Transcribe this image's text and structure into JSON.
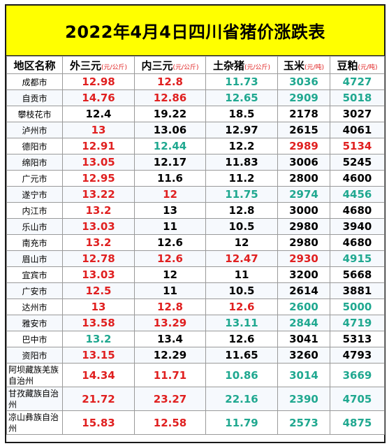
{
  "title": "2022年4月4日四川省猪价涨跌表",
  "colors": {
    "up": "#e02020",
    "down": "#20a890",
    "flat": "#000000",
    "title_bg": "#ffff00"
  },
  "headers": [
    {
      "name": "地区名称",
      "unit": ""
    },
    {
      "name": "外三元",
      "unit": "(元/公斤)"
    },
    {
      "name": "内三元",
      "unit": "(元/公斤)"
    },
    {
      "name": "土杂猪",
      "unit": "(元/公斤)"
    },
    {
      "name": "玉米",
      "unit": "(元/吨)"
    },
    {
      "name": "豆粕",
      "unit": "(元/吨)"
    }
  ],
  "rows": [
    {
      "region": "成都市",
      "cells": [
        {
          "v": "12.98",
          "t": "up"
        },
        {
          "v": "12.8",
          "t": "up"
        },
        {
          "v": "11.73",
          "t": "down"
        },
        {
          "v": "3036",
          "t": "down"
        },
        {
          "v": "4727",
          "t": "down"
        }
      ]
    },
    {
      "region": "自贡市",
      "cells": [
        {
          "v": "14.76",
          "t": "up"
        },
        {
          "v": "12.86",
          "t": "up"
        },
        {
          "v": "12.65",
          "t": "down"
        },
        {
          "v": "2909",
          "t": "down"
        },
        {
          "v": "5018",
          "t": "down"
        }
      ]
    },
    {
      "region": "攀枝花市",
      "cells": [
        {
          "v": "12.4",
          "t": "flat"
        },
        {
          "v": "19.22",
          "t": "flat"
        },
        {
          "v": "18.5",
          "t": "flat"
        },
        {
          "v": "2178",
          "t": "flat"
        },
        {
          "v": "3027",
          "t": "flat"
        }
      ]
    },
    {
      "region": "泸州市",
      "cells": [
        {
          "v": "13",
          "t": "up"
        },
        {
          "v": "13.06",
          "t": "flat"
        },
        {
          "v": "12.97",
          "t": "flat"
        },
        {
          "v": "2615",
          "t": "flat"
        },
        {
          "v": "4061",
          "t": "flat"
        }
      ]
    },
    {
      "region": "德阳市",
      "cells": [
        {
          "v": "12.91",
          "t": "up"
        },
        {
          "v": "12.44",
          "t": "down"
        },
        {
          "v": "12.2",
          "t": "flat"
        },
        {
          "v": "2989",
          "t": "up"
        },
        {
          "v": "5134",
          "t": "up"
        }
      ]
    },
    {
      "region": "绵阳市",
      "cells": [
        {
          "v": "13.05",
          "t": "up"
        },
        {
          "v": "12.17",
          "t": "flat"
        },
        {
          "v": "11.83",
          "t": "flat"
        },
        {
          "v": "3006",
          "t": "flat"
        },
        {
          "v": "5245",
          "t": "flat"
        }
      ]
    },
    {
      "region": "广元市",
      "cells": [
        {
          "v": "12.95",
          "t": "up"
        },
        {
          "v": "11.6",
          "t": "flat"
        },
        {
          "v": "11.2",
          "t": "flat"
        },
        {
          "v": "2800",
          "t": "flat"
        },
        {
          "v": "4600",
          "t": "flat"
        }
      ]
    },
    {
      "region": "遂宁市",
      "cells": [
        {
          "v": "13.22",
          "t": "up"
        },
        {
          "v": "12",
          "t": "up"
        },
        {
          "v": "11.75",
          "t": "down"
        },
        {
          "v": "2974",
          "t": "down"
        },
        {
          "v": "4456",
          "t": "down"
        }
      ]
    },
    {
      "region": "内江市",
      "cells": [
        {
          "v": "13.2",
          "t": "up"
        },
        {
          "v": "13",
          "t": "flat"
        },
        {
          "v": "12.8",
          "t": "flat"
        },
        {
          "v": "3000",
          "t": "flat"
        },
        {
          "v": "4680",
          "t": "flat"
        }
      ]
    },
    {
      "region": "乐山市",
      "cells": [
        {
          "v": "13.03",
          "t": "up"
        },
        {
          "v": "11",
          "t": "flat"
        },
        {
          "v": "10.5",
          "t": "flat"
        },
        {
          "v": "2980",
          "t": "flat"
        },
        {
          "v": "3940",
          "t": "flat"
        }
      ]
    },
    {
      "region": "南充市",
      "cells": [
        {
          "v": "13.2",
          "t": "up"
        },
        {
          "v": "12.6",
          "t": "flat"
        },
        {
          "v": "12",
          "t": "flat"
        },
        {
          "v": "2980",
          "t": "flat"
        },
        {
          "v": "4680",
          "t": "flat"
        }
      ]
    },
    {
      "region": "眉山市",
      "cells": [
        {
          "v": "12.78",
          "t": "up"
        },
        {
          "v": "12.6",
          "t": "up"
        },
        {
          "v": "12.47",
          "t": "up"
        },
        {
          "v": "2930",
          "t": "up"
        },
        {
          "v": "4915",
          "t": "down"
        }
      ]
    },
    {
      "region": "宜宾市",
      "cells": [
        {
          "v": "13.03",
          "t": "up"
        },
        {
          "v": "12",
          "t": "flat"
        },
        {
          "v": "11",
          "t": "flat"
        },
        {
          "v": "3200",
          "t": "flat"
        },
        {
          "v": "5668",
          "t": "flat"
        }
      ]
    },
    {
      "region": "广安市",
      "cells": [
        {
          "v": "12.5",
          "t": "up"
        },
        {
          "v": "11",
          "t": "flat"
        },
        {
          "v": "10.5",
          "t": "flat"
        },
        {
          "v": "2614",
          "t": "flat"
        },
        {
          "v": "3881",
          "t": "flat"
        }
      ]
    },
    {
      "region": "达州市",
      "cells": [
        {
          "v": "13",
          "t": "up"
        },
        {
          "v": "12.8",
          "t": "up"
        },
        {
          "v": "12.6",
          "t": "up"
        },
        {
          "v": "2600",
          "t": "down"
        },
        {
          "v": "5000",
          "t": "down"
        }
      ]
    },
    {
      "region": "雅安市",
      "cells": [
        {
          "v": "13.58",
          "t": "up"
        },
        {
          "v": "13.29",
          "t": "up"
        },
        {
          "v": "13.11",
          "t": "down"
        },
        {
          "v": "2844",
          "t": "down"
        },
        {
          "v": "4719",
          "t": "down"
        }
      ]
    },
    {
      "region": "巴中市",
      "cells": [
        {
          "v": "13.2",
          "t": "down"
        },
        {
          "v": "13.4",
          "t": "flat"
        },
        {
          "v": "12.6",
          "t": "flat"
        },
        {
          "v": "3041",
          "t": "flat"
        },
        {
          "v": "5313",
          "t": "flat"
        }
      ]
    },
    {
      "region": "资阳市",
      "cells": [
        {
          "v": "13.15",
          "t": "up"
        },
        {
          "v": "12.29",
          "t": "flat"
        },
        {
          "v": "11.65",
          "t": "flat"
        },
        {
          "v": "3260",
          "t": "flat"
        },
        {
          "v": "4793",
          "t": "flat"
        }
      ]
    },
    {
      "region": "阿坝藏族羌族自治州",
      "tall": true,
      "cells": [
        {
          "v": "14.34",
          "t": "up"
        },
        {
          "v": "11.71",
          "t": "up"
        },
        {
          "v": "10.86",
          "t": "down"
        },
        {
          "v": "3014",
          "t": "down"
        },
        {
          "v": "3669",
          "t": "down"
        }
      ]
    },
    {
      "region": "甘孜藏族自治州",
      "tall": true,
      "cells": [
        {
          "v": "21.72",
          "t": "up"
        },
        {
          "v": "23.27",
          "t": "up"
        },
        {
          "v": "22.16",
          "t": "down"
        },
        {
          "v": "2390",
          "t": "down"
        },
        {
          "v": "4705",
          "t": "down"
        }
      ]
    },
    {
      "region": "凉山彝族自治州",
      "tall": true,
      "cells": [
        {
          "v": "15.83",
          "t": "up"
        },
        {
          "v": "12.58",
          "t": "up"
        },
        {
          "v": "11.79",
          "t": "down"
        },
        {
          "v": "2573",
          "t": "down"
        },
        {
          "v": "4875",
          "t": "down"
        }
      ]
    }
  ]
}
